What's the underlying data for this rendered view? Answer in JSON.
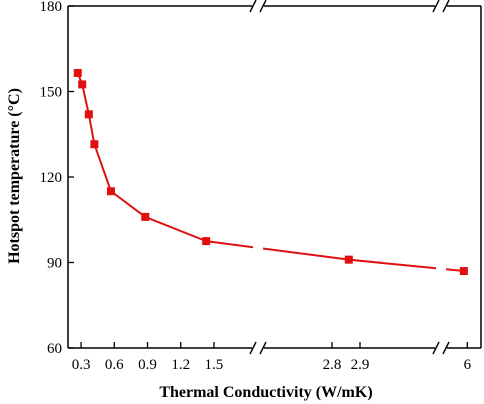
{
  "chart_data": {
    "type": "line",
    "title": "",
    "xlabel": "Thermal Conductivity (W/mK)",
    "ylabel": "Hotspot temperature (°C)",
    "ylim": [
      60,
      180
    ],
    "y_ticks": [
      60,
      90,
      120,
      150,
      180
    ],
    "x_axis_broken": true,
    "x_segments": [
      {
        "range": [
          0.2,
          1.6
        ],
        "ticks": [
          0.3,
          0.6,
          0.9,
          1.2,
          1.5
        ]
      },
      {
        "range": [
          2.7,
          2.95
        ],
        "ticks": [
          2.8,
          2.9
        ]
      },
      {
        "range": [
          5.9,
          6.05
        ],
        "ticks": [
          6
        ]
      }
    ],
    "x_tick_labels": [
      "0.3",
      "0.6",
      "0.9",
      "1.2",
      "1.5",
      "2.8",
      "2.9",
      "6"
    ],
    "grid": false,
    "series": [
      {
        "name": "",
        "color": "#e01010",
        "marker": "square",
        "points": [
          {
            "x": 0.27,
            "y": 156.5
          },
          {
            "x": 0.31,
            "y": 152.5
          },
          {
            "x": 0.37,
            "y": 142
          },
          {
            "x": 0.42,
            "y": 131.5
          },
          {
            "x": 0.57,
            "y": 115
          },
          {
            "x": 0.88,
            "y": 106
          },
          {
            "x": 1.43,
            "y": 97.5
          },
          {
            "x": 2.86,
            "y": 91
          },
          {
            "x": 5.98,
            "y": 87
          }
        ]
      }
    ]
  }
}
